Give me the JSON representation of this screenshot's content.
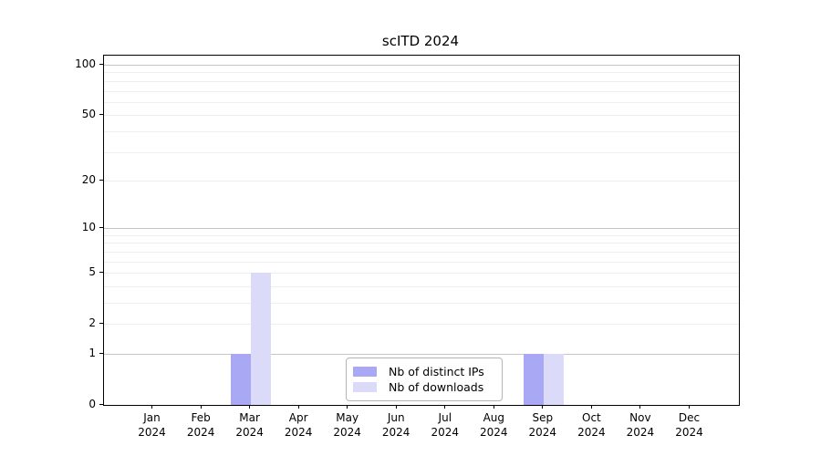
{
  "chart_data": {
    "type": "bar",
    "title": "scITD 2024",
    "categories": [
      "Jan 2024",
      "Feb 2024",
      "Mar 2024",
      "Apr 2024",
      "May 2024",
      "Jun 2024",
      "Jul 2024",
      "Aug 2024",
      "Sep 2024",
      "Oct 2024",
      "Nov 2024",
      "Dec 2024"
    ],
    "series": [
      {
        "name": "Nb of distinct IPs",
        "color": "#a8a8f5",
        "values": [
          0,
          0,
          1,
          0,
          0,
          0,
          0,
          0,
          1,
          0,
          0,
          0
        ]
      },
      {
        "name": "Nb of downloads",
        "color": "#dbdbf9",
        "values": [
          0,
          0,
          5,
          0,
          0,
          0,
          0,
          0,
          1,
          0,
          0,
          0
        ]
      }
    ],
    "yscale": "log10(1+y)",
    "yticks": [
      0,
      1,
      2,
      5,
      10,
      20,
      50,
      100
    ],
    "ylim": [
      0,
      113
    ],
    "xlabel": "",
    "ylabel": "",
    "grid": true,
    "legend_position": "lower center",
    "colors": {
      "axis": "#000000",
      "gridline_major": "#c6c6c6",
      "gridline_minor": "#eeeeee",
      "background": "#ffffff"
    }
  }
}
